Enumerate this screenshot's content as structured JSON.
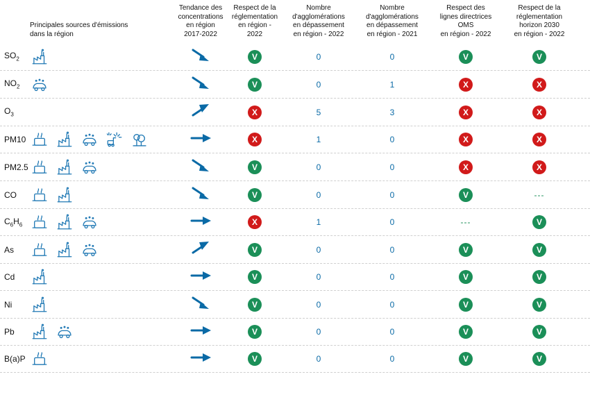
{
  "colors": {
    "icon_stroke": "#1f78b4",
    "trend_arrow": "#0a6aa6",
    "number_text": "#0a6aa6",
    "pass_bg": "#1b8f58",
    "fail_bg": "#d11a1a",
    "dash_color": "#1b8f58",
    "header_text": "#111111",
    "pollutant_text": "#111111",
    "border_color": "#cfcfcf"
  },
  "icon_size": 26,
  "headers": {
    "pollutant": "",
    "sources": "Principales sources d'émissions\ndans la région",
    "trend": "Tendance des\nconcentrations\nen région\n2017-2022",
    "compliance": "Respect de la\nréglementation\nen région - 2022",
    "exceed_2022": "Nombre\nd'agglomérations\nen dépassement\nen région - 2022",
    "exceed_2021": "Nombre\nd'agglomérations\nen dépassement\nen région - 2021",
    "oms": "Respect des\nlignes directrices\nOMS\nen région - 2022",
    "horizon2030": "Respect de la\nréglementation\nhorizon 2030\nen région - 2022"
  },
  "rows": [
    {
      "pollutant_html": "SO<sub>2</sub>",
      "sources": [
        "factory"
      ],
      "trend": "down",
      "compliance": "pass",
      "exceed_2022": 0,
      "exceed_2021": 0,
      "oms": "pass",
      "horizon2030": "pass"
    },
    {
      "pollutant_html": "NO<sub>2</sub>",
      "sources": [
        "car"
      ],
      "trend": "down",
      "compliance": "pass",
      "exceed_2022": 0,
      "exceed_2021": 1,
      "oms": "fail",
      "horizon2030": "fail"
    },
    {
      "pollutant_html": "O<sub>3</sub>",
      "sources": [],
      "trend": "up",
      "compliance": "fail",
      "exceed_2022": 5,
      "exceed_2021": 3,
      "oms": "fail",
      "horizon2030": "fail"
    },
    {
      "pollutant_html": "PM10",
      "sources": [
        "heating",
        "factory",
        "car",
        "agri",
        "nature"
      ],
      "trend": "flat",
      "compliance": "fail",
      "exceed_2022": 1,
      "exceed_2021": 0,
      "oms": "fail",
      "horizon2030": "fail"
    },
    {
      "pollutant_html": "PM2.5",
      "sources": [
        "heating",
        "factory",
        "car"
      ],
      "trend": "down",
      "compliance": "pass",
      "exceed_2022": 0,
      "exceed_2021": 0,
      "oms": "fail",
      "horizon2030": "fail"
    },
    {
      "pollutant_html": "CO",
      "sources": [
        "heating",
        "factory"
      ],
      "trend": "down",
      "compliance": "pass",
      "exceed_2022": 0,
      "exceed_2021": 0,
      "oms": "pass",
      "horizon2030": "dash"
    },
    {
      "pollutant_html": "C<sub>6</sub>H<sub>6</sub>",
      "sources": [
        "heating",
        "factory",
        "car"
      ],
      "trend": "flat",
      "compliance": "fail",
      "exceed_2022": 1,
      "exceed_2021": 0,
      "oms": "dash",
      "horizon2030": "pass"
    },
    {
      "pollutant_html": "As",
      "sources": [
        "heating",
        "factory",
        "car"
      ],
      "trend": "up",
      "compliance": "pass",
      "exceed_2022": 0,
      "exceed_2021": 0,
      "oms": "pass",
      "horizon2030": "pass"
    },
    {
      "pollutant_html": "Cd",
      "sources": [
        "factory"
      ],
      "trend": "flat",
      "compliance": "pass",
      "exceed_2022": 0,
      "exceed_2021": 0,
      "oms": "pass",
      "horizon2030": "pass"
    },
    {
      "pollutant_html": "Ni",
      "sources": [
        "factory"
      ],
      "trend": "down",
      "compliance": "pass",
      "exceed_2022": 0,
      "exceed_2021": 0,
      "oms": "pass",
      "horizon2030": "pass"
    },
    {
      "pollutant_html": "Pb",
      "sources": [
        "factory",
        "car"
      ],
      "trend": "flat",
      "compliance": "pass",
      "exceed_2022": 0,
      "exceed_2021": 0,
      "oms": "pass",
      "horizon2030": "pass"
    },
    {
      "pollutant_html": "B(a)P",
      "sources": [
        "heating"
      ],
      "trend": "flat",
      "compliance": "pass",
      "exceed_2022": 0,
      "exceed_2021": 0,
      "oms": "pass",
      "horizon2030": "pass"
    }
  ]
}
